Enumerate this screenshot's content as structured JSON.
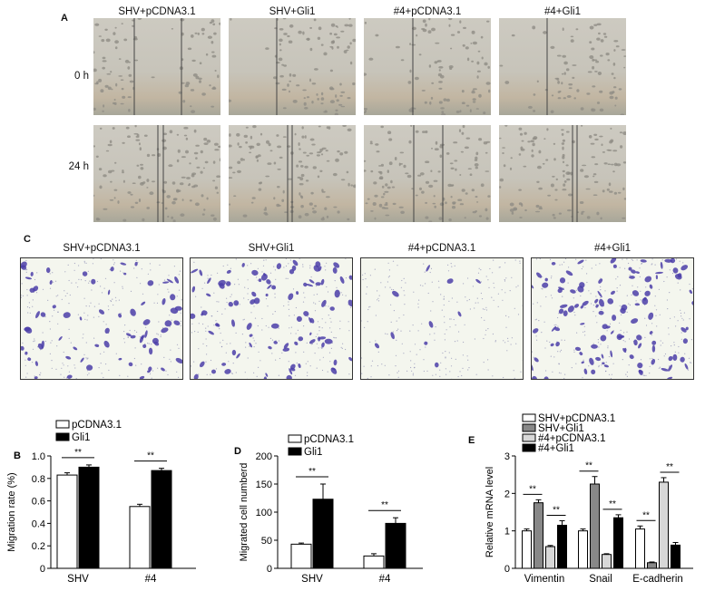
{
  "panel_a": {
    "letter": "A",
    "columns": [
      "SHV+pCDNA3.1",
      "SHV+Gli1",
      "#4+pCDNA3.1",
      "#4+Gli1"
    ],
    "rows": [
      "0 h",
      "24 h"
    ]
  },
  "panel_c": {
    "letter": "C",
    "columns": [
      "SHV+pCDNA3.1",
      "SHV+Gli1",
      "#4+pCDNA3.1",
      "#4+Gli1"
    ]
  },
  "chart_data": [
    {
      "panel": "B",
      "type": "bar",
      "categories": [
        "SHV",
        "#4"
      ],
      "ylabel": "Migration rate (%)",
      "ylim": [
        0,
        1.0
      ],
      "yticks": [
        "0",
        "0.2",
        "0.4",
        "0.6",
        "0.8",
        "1.0"
      ],
      "series": [
        {
          "name": "pCDNA3.1",
          "values": [
            0.83,
            0.55
          ],
          "errors": [
            0.02,
            0.02
          ],
          "color": "#ffffff"
        },
        {
          "name": "Gli1",
          "values": [
            0.9,
            0.87
          ],
          "errors": [
            0.02,
            0.02
          ],
          "color": "#000000"
        }
      ],
      "significance": [
        "**",
        "**"
      ]
    },
    {
      "panel": "D",
      "type": "bar",
      "categories": [
        "SHV",
        "#4"
      ],
      "ylabel": "Migrated cell numberd",
      "ylim": [
        0,
        200
      ],
      "yticks": [
        "0",
        "50",
        "100",
        "150",
        "200"
      ],
      "series": [
        {
          "name": "pCDNA3.1",
          "values": [
            43,
            22
          ],
          "errors": [
            2,
            4
          ],
          "color": "#ffffff"
        },
        {
          "name": "Gli1",
          "values": [
            123,
            80
          ],
          "errors": [
            27,
            10
          ],
          "color": "#000000"
        }
      ],
      "significance": [
        "**",
        "**"
      ]
    },
    {
      "panel": "E",
      "type": "bar",
      "categories": [
        "Vimentin",
        "Snail",
        "E-cadherin"
      ],
      "ylabel": "Relative mRNA level",
      "ylim": [
        0,
        3
      ],
      "yticks": [
        "0",
        "1",
        "2",
        "3"
      ],
      "series": [
        {
          "name": "SHV+pCDNA3.1",
          "values": [
            1.0,
            1.0,
            1.05
          ],
          "errors": [
            0.05,
            0.05,
            0.08
          ],
          "color": "#ffffff"
        },
        {
          "name": "SHV+Gli1",
          "values": [
            1.75,
            2.25,
            0.15
          ],
          "errors": [
            0.08,
            0.2,
            0.02
          ],
          "color": "#888888"
        },
        {
          "name": "#4+pCDNA3.1",
          "values": [
            0.58,
            0.37,
            2.3
          ],
          "errors": [
            0.03,
            0.02,
            0.12
          ],
          "color": "#d8d8d8"
        },
        {
          "name": "#4+Gli1",
          "values": [
            1.15,
            1.35,
            0.62
          ],
          "errors": [
            0.12,
            0.08,
            0.07
          ],
          "color": "#000000"
        }
      ],
      "significance": [
        [
          "**",
          "**"
        ],
        [
          "**",
          "**"
        ],
        [
          "**",
          "**"
        ]
      ]
    }
  ]
}
